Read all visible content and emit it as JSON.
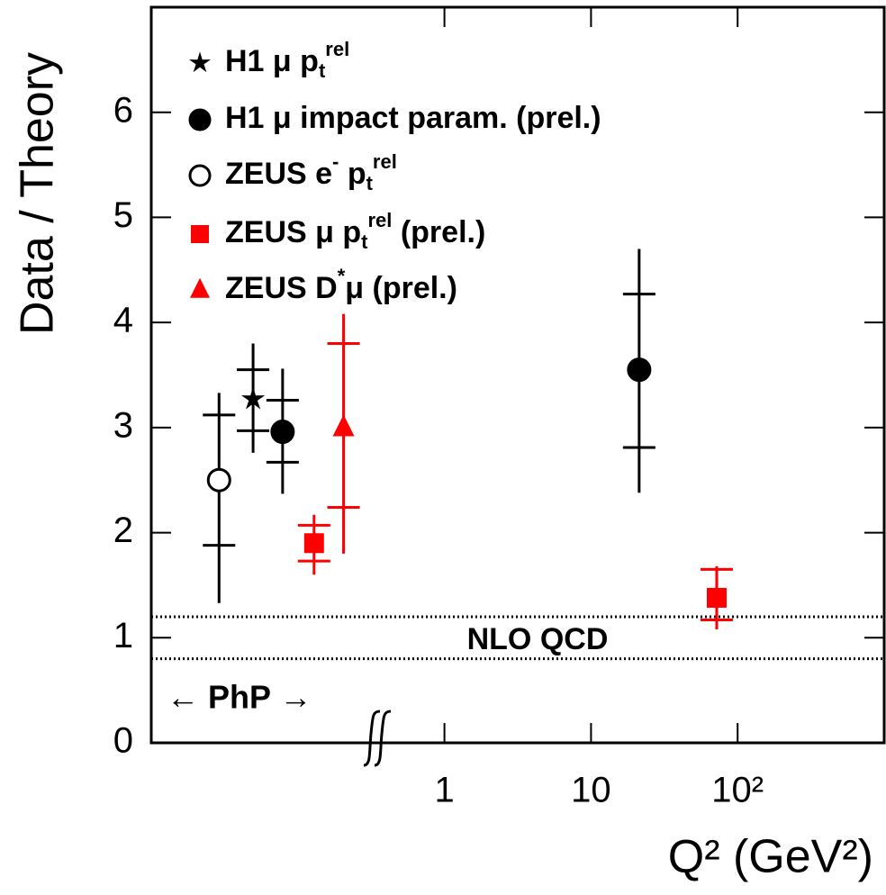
{
  "chart_data": {
    "type": "errorbar",
    "ylabel": "Data / Theory",
    "xlabel": "Q² (GeV²)",
    "xscale": "log",
    "xlim": [
      0.01,
      1000
    ],
    "xticks": [
      1,
      10,
      {
        "value": 100,
        "label": "10²"
      }
    ],
    "ylim": [
      0,
      7
    ],
    "yticks": [
      0,
      1,
      2,
      3,
      4,
      5,
      6
    ],
    "band": {
      "label": "NLO QCD",
      "values": [
        0.8,
        1.2
      ]
    },
    "annotation": {
      "text": "← PhP →",
      "color": "#1a1ae6"
    },
    "legend": "upper left",
    "series": [
      {
        "name": [
          {
            "t": "H1 μ p"
          },
          {
            "t": "t",
            "pos": "sub"
          },
          {
            "t": "rel",
            "pos": "sup"
          }
        ],
        "marker": "star",
        "color": "#000000",
        "x": [
          0.0495
        ],
        "values": [
          3.27
        ],
        "stat_lo": [
          2.97
        ],
        "stat_hi": [
          3.55
        ],
        "tot_lo": [
          2.76
        ],
        "tot_hi": [
          3.8
        ]
      },
      {
        "name": [
          {
            "t": "H1 μ impact param. (prel.)"
          }
        ],
        "marker": "circle",
        "color": "#000000",
        "x": [
          0.0787,
          21.3
        ],
        "values": [
          2.96,
          3.55
        ],
        "stat_lo": [
          2.67,
          2.81
        ],
        "stat_hi": [
          3.26,
          4.27
        ],
        "tot_lo": [
          2.37,
          2.38
        ],
        "tot_hi": [
          3.56,
          4.7
        ]
      },
      {
        "name": [
          {
            "t": "ZEUS e"
          },
          {
            "t": "-",
            "pos": "sup"
          },
          {
            "t": " p"
          },
          {
            "t": "t",
            "pos": "sub"
          },
          {
            "t": "rel",
            "pos": "sup"
          }
        ],
        "marker": "open-circle",
        "color": "#000000",
        "x": [
          0.029
        ],
        "values": [
          2.5
        ],
        "stat_lo": [
          1.88
        ],
        "stat_hi": [
          3.12
        ],
        "tot_lo": [
          1.33
        ],
        "tot_hi": [
          3.33
        ]
      },
      {
        "name": [
          {
            "t": "ZEUS μ p"
          },
          {
            "t": "t",
            "pos": "sub"
          },
          {
            "t": "rel",
            "pos": "sup"
          },
          {
            "t": " (prel.)"
          }
        ],
        "marker": "square",
        "color": "#ff0000",
        "x": [
          0.129,
          72
        ],
        "values": [
          1.9,
          1.38
        ],
        "stat_lo": [
          1.73,
          1.17
        ],
        "stat_hi": [
          2.07,
          1.65
        ],
        "tot_lo": [
          1.6,
          1.08
        ],
        "tot_hi": [
          2.17,
          1.68
        ]
      },
      {
        "name": [
          {
            "t": "ZEUS D"
          },
          {
            "t": "*",
            "pos": "sup"
          },
          {
            "t": "μ (prel.)"
          }
        ],
        "marker": "triangle",
        "color": "#ff0000",
        "x": [
          0.205
        ],
        "values": [
          3.0
        ],
        "stat_lo": [
          2.24
        ],
        "stat_hi": [
          3.8
        ],
        "tot_lo": [
          1.8
        ],
        "tot_hi": [
          4.08
        ]
      }
    ]
  }
}
